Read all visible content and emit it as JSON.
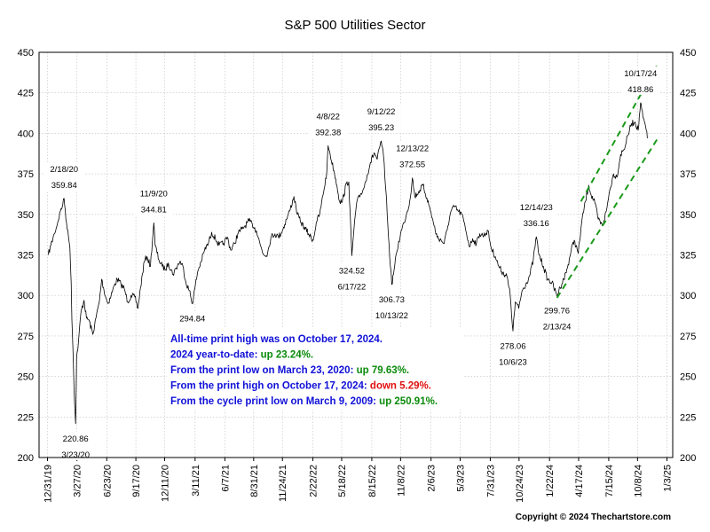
{
  "chart_data": {
    "type": "line",
    "title": "S&P 500 Utilities Sector",
    "xlabel": "",
    "ylabel": "",
    "ylim": [
      200,
      450
    ],
    "yticks": [
      200,
      225,
      250,
      275,
      300,
      325,
      350,
      375,
      400,
      425,
      450
    ],
    "grid": true,
    "x_tick_labels": [
      "12/31/19",
      "3/27/20",
      "6/23/20",
      "9/17/20",
      "12/11/20",
      "3/11/21",
      "6/7/21",
      "8/31/21",
      "11/24/21",
      "2/22/22",
      "5/18/22",
      "8/15/22",
      "11/8/22",
      "2/6/23",
      "5/3/23",
      "7/31/23",
      "10/24/23",
      "1/22/24",
      "4/17/24",
      "7/15/24",
      "10/8/24",
      "1/3/25"
    ],
    "x_tick_dates": [
      "2019-12-31",
      "2020-03-27",
      "2020-06-23",
      "2020-09-17",
      "2020-12-11",
      "2021-03-11",
      "2021-06-07",
      "2021-08-31",
      "2021-11-24",
      "2022-02-22",
      "2022-05-18",
      "2022-08-15",
      "2022-11-08",
      "2023-02-06",
      "2023-05-03",
      "2023-07-31",
      "2023-10-24",
      "2024-01-22",
      "2024-04-17",
      "2024-07-15",
      "2024-10-08",
      "2025-01-03"
    ],
    "series": [
      {
        "points": [
          [
            "2020-01-02",
            325
          ],
          [
            "2020-01-10",
            331
          ],
          [
            "2020-01-20",
            338
          ],
          [
            "2020-01-30",
            345
          ],
          [
            "2020-02-07",
            352
          ],
          [
            "2020-02-14",
            356
          ],
          [
            "2020-02-18",
            359.84
          ],
          [
            "2020-02-25",
            345
          ],
          [
            "2020-03-02",
            336
          ],
          [
            "2020-03-06",
            330
          ],
          [
            "2020-03-10",
            308
          ],
          [
            "2020-03-12",
            285
          ],
          [
            "2020-03-16",
            262
          ],
          [
            "2020-03-18",
            245
          ],
          [
            "2020-03-23",
            220.86
          ],
          [
            "2020-03-26",
            262
          ],
          [
            "2020-03-31",
            270
          ],
          [
            "2020-04-08",
            290
          ],
          [
            "2020-04-17",
            297
          ],
          [
            "2020-04-24",
            286
          ],
          [
            "2020-05-01",
            285
          ],
          [
            "2020-05-13",
            276
          ],
          [
            "2020-05-22",
            286
          ],
          [
            "2020-06-01",
            296
          ],
          [
            "2020-06-08",
            310
          ],
          [
            "2020-06-15",
            303
          ],
          [
            "2020-06-26",
            295
          ],
          [
            "2020-07-06",
            300
          ],
          [
            "2020-07-15",
            306
          ],
          [
            "2020-07-24",
            310
          ],
          [
            "2020-08-04",
            307
          ],
          [
            "2020-08-14",
            304
          ],
          [
            "2020-08-24",
            296
          ],
          [
            "2020-09-03",
            300
          ],
          [
            "2020-09-14",
            299
          ],
          [
            "2020-09-23",
            292
          ],
          [
            "2020-10-01",
            305
          ],
          [
            "2020-10-12",
            321
          ],
          [
            "2020-10-20",
            324
          ],
          [
            "2020-10-30",
            318
          ],
          [
            "2020-11-09",
            344.81
          ],
          [
            "2020-11-13",
            331
          ],
          [
            "2020-11-24",
            322
          ],
          [
            "2020-12-04",
            318
          ],
          [
            "2020-12-14",
            316
          ],
          [
            "2020-12-22",
            320
          ],
          [
            "2021-01-05",
            313
          ],
          [
            "2021-01-14",
            317
          ],
          [
            "2021-01-25",
            321
          ],
          [
            "2021-02-03",
            318
          ],
          [
            "2021-02-12",
            308
          ],
          [
            "2021-02-22",
            303
          ],
          [
            "2021-03-03",
            294.84
          ],
          [
            "2021-03-10",
            304
          ],
          [
            "2021-03-19",
            315
          ],
          [
            "2021-03-29",
            321
          ],
          [
            "2021-04-08",
            328
          ],
          [
            "2021-04-19",
            332
          ],
          [
            "2021-04-29",
            339
          ],
          [
            "2021-05-10",
            335
          ],
          [
            "2021-05-21",
            331
          ],
          [
            "2021-06-03",
            332
          ],
          [
            "2021-06-14",
            336
          ],
          [
            "2021-06-24",
            328
          ],
          [
            "2021-07-06",
            332
          ],
          [
            "2021-07-15",
            338
          ],
          [
            "2021-07-27",
            341
          ],
          [
            "2021-08-06",
            343
          ],
          [
            "2021-08-17",
            346
          ],
          [
            "2021-08-27",
            344
          ],
          [
            "2021-09-08",
            340
          ],
          [
            "2021-09-20",
            331
          ],
          [
            "2021-09-30",
            325
          ],
          [
            "2021-10-11",
            326
          ],
          [
            "2021-10-21",
            336
          ],
          [
            "2021-11-02",
            338
          ],
          [
            "2021-11-12",
            336
          ],
          [
            "2021-11-24",
            340
          ],
          [
            "2021-12-06",
            347
          ],
          [
            "2021-12-15",
            352
          ],
          [
            "2021-12-28",
            361
          ],
          [
            "2022-01-07",
            350
          ],
          [
            "2022-01-18",
            345
          ],
          [
            "2022-01-28",
            342
          ],
          [
            "2022-02-09",
            338
          ],
          [
            "2022-02-23",
            334
          ],
          [
            "2022-03-04",
            345
          ],
          [
            "2022-03-14",
            350
          ],
          [
            "2022-03-24",
            362
          ],
          [
            "2022-04-04",
            376
          ],
          [
            "2022-04-08",
            392.38
          ],
          [
            "2022-04-14",
            387
          ],
          [
            "2022-04-25",
            377
          ],
          [
            "2022-05-04",
            368
          ],
          [
            "2022-05-12",
            358
          ],
          [
            "2022-05-20",
            358
          ],
          [
            "2022-06-01",
            369
          ],
          [
            "2022-06-08",
            370
          ],
          [
            "2022-06-17",
            324.52
          ],
          [
            "2022-06-23",
            340
          ],
          [
            "2022-07-01",
            357
          ],
          [
            "2022-07-12",
            362
          ],
          [
            "2022-07-22",
            366
          ],
          [
            "2022-08-01",
            374
          ],
          [
            "2022-08-11",
            382
          ],
          [
            "2022-08-22",
            388
          ],
          [
            "2022-08-31",
            384
          ],
          [
            "2022-09-12",
            395.23
          ],
          [
            "2022-09-19",
            385
          ],
          [
            "2022-09-26",
            364
          ],
          [
            "2022-10-03",
            337
          ],
          [
            "2022-10-13",
            306.73
          ],
          [
            "2022-10-20",
            316
          ],
          [
            "2022-10-28",
            327
          ],
          [
            "2022-11-08",
            338
          ],
          [
            "2022-11-18",
            345
          ],
          [
            "2022-11-28",
            352
          ],
          [
            "2022-12-05",
            358
          ],
          [
            "2022-12-13",
            372.55
          ],
          [
            "2022-12-20",
            361
          ],
          [
            "2023-01-04",
            365
          ],
          [
            "2023-01-13",
            368
          ],
          [
            "2023-01-25",
            360
          ],
          [
            "2023-02-06",
            351
          ],
          [
            "2023-02-15",
            343
          ],
          [
            "2023-02-24",
            336
          ],
          [
            "2023-03-08",
            334
          ],
          [
            "2023-03-17",
            332
          ],
          [
            "2023-03-28",
            343
          ],
          [
            "2023-04-06",
            352
          ],
          [
            "2023-04-17",
            355
          ],
          [
            "2023-04-27",
            352
          ],
          [
            "2023-05-08",
            350
          ],
          [
            "2023-05-18",
            342
          ],
          [
            "2023-05-31",
            330
          ],
          [
            "2023-06-09",
            335
          ],
          [
            "2023-06-20",
            332
          ],
          [
            "2023-06-30",
            338
          ],
          [
            "2023-07-12",
            337
          ],
          [
            "2023-07-24",
            340
          ],
          [
            "2023-08-03",
            329
          ],
          [
            "2023-08-15",
            324
          ],
          [
            "2023-08-25",
            318
          ],
          [
            "2023-09-06",
            314
          ],
          [
            "2023-09-18",
            312
          ],
          [
            "2023-09-28",
            300
          ],
          [
            "2023-10-06",
            278.06
          ],
          [
            "2023-10-13",
            296
          ],
          [
            "2023-10-23",
            292
          ],
          [
            "2023-11-02",
            303
          ],
          [
            "2023-11-13",
            307
          ],
          [
            "2023-11-24",
            312
          ],
          [
            "2023-12-05",
            322
          ],
          [
            "2023-12-14",
            336.16
          ],
          [
            "2023-12-22",
            325
          ],
          [
            "2024-01-04",
            318
          ],
          [
            "2024-01-16",
            310
          ],
          [
            "2024-01-29",
            308
          ],
          [
            "2024-02-13",
            299.76
          ],
          [
            "2024-02-22",
            305
          ],
          [
            "2024-03-04",
            310
          ],
          [
            "2024-03-15",
            317
          ],
          [
            "2024-03-26",
            328
          ],
          [
            "2024-04-04",
            334
          ],
          [
            "2024-04-16",
            326
          ],
          [
            "2024-04-26",
            345
          ],
          [
            "2024-05-07",
            358
          ],
          [
            "2024-05-17",
            368
          ],
          [
            "2024-05-24",
            362
          ],
          [
            "2024-06-04",
            357
          ],
          [
            "2024-06-14",
            347
          ],
          [
            "2024-06-26",
            343
          ],
          [
            "2024-07-08",
            352
          ],
          [
            "2024-07-18",
            365
          ],
          [
            "2024-07-29",
            375
          ],
          [
            "2024-08-08",
            373
          ],
          [
            "2024-08-19",
            387
          ],
          [
            "2024-08-29",
            390
          ],
          [
            "2024-09-10",
            399
          ],
          [
            "2024-09-20",
            406
          ],
          [
            "2024-10-01",
            407
          ],
          [
            "2024-10-10",
            402
          ],
          [
            "2024-10-17",
            418.86
          ],
          [
            "2024-10-24",
            410
          ],
          [
            "2024-11-01",
            404
          ],
          [
            "2024-11-06",
            397
          ]
        ]
      }
    ],
    "trend_channel": {
      "upper": [
        [
          "2024-04-24",
          358
        ],
        [
          "2024-12-10",
          444
        ]
      ],
      "lower": [
        [
          "2024-02-13",
          298.5
        ],
        [
          "2024-12-10",
          398
        ]
      ]
    },
    "annotations": [
      {
        "date": "2020-02-18",
        "value": 359.84,
        "lines": [
          "2/18/20",
          "359.84"
        ],
        "pos": "above"
      },
      {
        "date": "2020-03-23",
        "value": 220.86,
        "lines": [
          "220.86",
          "3/23/20"
        ],
        "pos": "below"
      },
      {
        "date": "2020-11-09",
        "value": 344.81,
        "lines": [
          "11/9/20",
          "344.81"
        ],
        "pos": "above"
      },
      {
        "date": "2021-03-03",
        "value": 294.84,
        "lines": [
          "294.84",
          "3/3/21"
        ],
        "pos": "below"
      },
      {
        "date": "2022-04-08",
        "value": 392.38,
        "lines": [
          "4/8/22",
          "392.38"
        ],
        "pos": "above"
      },
      {
        "date": "2022-06-17",
        "value": 324.52,
        "lines": [
          "324.52",
          "6/17/22"
        ],
        "pos": "below"
      },
      {
        "date": "2022-09-12",
        "value": 395.23,
        "lines": [
          "9/12/22",
          "395.23"
        ],
        "pos": "above"
      },
      {
        "date": "2022-10-13",
        "value": 306.73,
        "lines": [
          "306.73",
          "10/13/22"
        ],
        "pos": "below"
      },
      {
        "date": "2022-12-13",
        "value": 372.55,
        "lines": [
          "12/13/22",
          "372.55"
        ],
        "pos": "above"
      },
      {
        "date": "2023-10-06",
        "value": 278.06,
        "lines": [
          "278.06",
          "10/6/23"
        ],
        "pos": "below"
      },
      {
        "date": "2023-12-14",
        "value": 336.16,
        "lines": [
          "12/14/23",
          "336.16"
        ],
        "pos": "above"
      },
      {
        "date": "2024-02-13",
        "value": 299.76,
        "lines": [
          "299.76",
          "2/13/24"
        ],
        "pos": "below"
      },
      {
        "date": "2024-10-17",
        "value": 418.86,
        "lines": [
          "10/17/24",
          "418.86"
        ],
        "pos": "above"
      }
    ],
    "notes": [
      {
        "parts": [
          {
            "text": "All-time print high was on October 17, 2024.",
            "color": "#1010d8"
          }
        ]
      },
      {
        "parts": [
          {
            "text": "2024 year-to-date:  ",
            "color": "#1010d8"
          },
          {
            "text": "up 23.24%.",
            "color": "#0a8a0a"
          }
        ]
      },
      {
        "parts": [
          {
            "text": "From the print low on March 23, 2020:  ",
            "color": "#1010d8"
          },
          {
            "text": "up 79.63%.",
            "color": "#0a8a0a"
          }
        ]
      },
      {
        "parts": [
          {
            "text": "From the print high on October 17, 2024:  ",
            "color": "#1010d8"
          },
          {
            "text": "down 5.29%.",
            "color": "#e01010"
          }
        ]
      },
      {
        "parts": [
          {
            "text": "From the cycle print low on March 9, 2009:  ",
            "color": "#1010d8"
          },
          {
            "text": "up 250.91%.",
            "color": "#0a8a0a"
          }
        ]
      }
    ],
    "colors": {
      "line": "#000000",
      "channel": "#1a9a1a",
      "grid": "#bfbfbf"
    }
  },
  "copyright": "Copyright © 2024 Thechartstore.com"
}
